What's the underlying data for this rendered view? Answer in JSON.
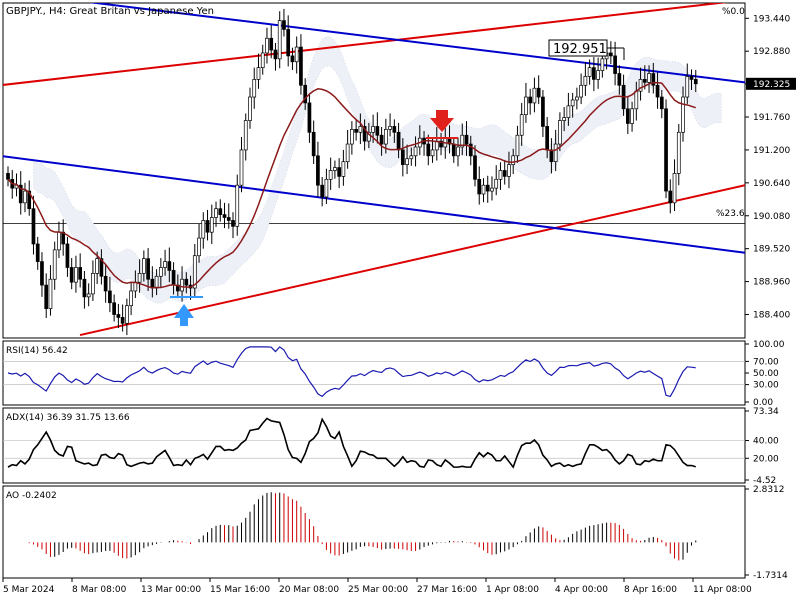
{
  "colors": {
    "up": "#000000",
    "down": "#000000",
    "background": "#ffffff",
    "grid": "#c0c0c0",
    "channel_blue": "#0000cc",
    "channel_red": "#dd0000",
    "ma": "#8b1a1a",
    "rsi": "#1a1ab0",
    "adx": "#000000",
    "ao_up": "#000000",
    "ao_down": "#cc0000",
    "arrow_down": "#e0201a",
    "arrow_up": "#3399ff",
    "last_price_bg": "#000000"
  },
  "chart_data": [
    {
      "type": "candlestick",
      "pane": "price",
      "title": "GBPJPY., H4:  Great Britan vs Japanese Yen",
      "corner_label": "%0.0",
      "level_label": "%23.6",
      "level_value": 189.95,
      "yticks": [
        193.44,
        192.88,
        192.325,
        191.76,
        191.2,
        190.64,
        190.08,
        189.52,
        188.96,
        188.4
      ],
      "ytick_labels": [
        "193.440",
        "192.880",
        "192.325",
        "191.760",
        "191.200",
        "190.640",
        "190.080",
        "189.520",
        "188.960",
        "188.400"
      ],
      "ylim": [
        188.0,
        193.7
      ],
      "last_price": 192.325,
      "last_price_label": "192.325",
      "callout_label": "192.951",
      "callout_value": 192.951,
      "x_labels": [
        "5 Mar 2024",
        "8 Mar 08:00",
        "13 Mar 00:00",
        "15 Mar 16:00",
        "20 Mar 08:00",
        "25 Mar 00:00",
        "27 Mar 16:00",
        "1 Apr 08:00",
        "4 Apr 00:00",
        "8 Apr 16:00",
        "11 Apr 08:00"
      ],
      "closes": [
        190.7,
        190.55,
        190.6,
        190.3,
        190.5,
        190.2,
        189.6,
        189.3,
        188.9,
        188.5,
        189.0,
        189.5,
        189.8,
        189.6,
        189.2,
        188.95,
        189.2,
        189.0,
        188.7,
        188.75,
        189.1,
        189.35,
        189.05,
        188.8,
        188.6,
        188.4,
        188.35,
        188.25,
        188.55,
        188.8,
        188.95,
        189.1,
        189.35,
        189.0,
        188.85,
        189.05,
        189.2,
        189.3,
        189.15,
        188.9,
        188.8,
        189.0,
        188.9,
        188.85,
        189.4,
        189.7,
        190.0,
        189.8,
        190.05,
        190.2,
        190.1,
        190.05,
        190.0,
        189.9,
        190.6,
        191.2,
        191.7,
        192.1,
        192.4,
        192.6,
        192.85,
        193.1,
        192.9,
        192.75,
        193.4,
        193.25,
        192.8,
        192.7,
        192.95,
        192.3,
        192.0,
        191.5,
        191.1,
        190.6,
        190.4,
        190.7,
        190.85,
        190.9,
        190.75,
        191.0,
        191.3,
        191.55,
        191.5,
        191.6,
        191.35,
        191.5,
        191.6,
        191.45,
        191.3,
        191.55,
        191.6,
        191.5,
        191.2,
        190.95,
        191.05,
        191.1,
        191.25,
        191.4,
        191.3,
        191.1,
        191.2,
        191.35,
        191.25,
        191.4,
        191.3,
        191.1,
        191.25,
        191.45,
        191.3,
        191.1,
        190.7,
        190.45,
        190.6,
        190.5,
        190.55,
        190.7,
        190.85,
        190.75,
        190.95,
        191.1,
        191.45,
        191.8,
        192.1,
        192.0,
        192.25,
        192.1,
        191.6,
        191.2,
        191.0,
        191.3,
        191.7,
        191.75,
        191.95,
        192.05,
        192.1,
        192.3,
        192.45,
        192.6,
        192.4,
        192.55,
        192.75,
        192.85,
        192.8,
        192.5,
        192.3,
        191.9,
        191.65,
        191.9,
        192.2,
        192.4,
        192.35,
        192.5,
        192.3,
        192.1,
        191.9,
        190.5,
        190.3,
        190.8,
        191.5,
        192.1,
        192.45,
        192.4,
        192.325
      ]
    },
    {
      "type": "line",
      "pane": "rsi",
      "label": "RSI(14) 56.42",
      "ylim": [
        0,
        100
      ],
      "yticks": [
        100,
        70,
        50,
        30,
        0
      ],
      "ytick_labels": [
        "100.00",
        "70.00",
        "50.00",
        "30.00",
        "0.00"
      ]
    },
    {
      "type": "line",
      "pane": "adx",
      "label": "ADX(14) 36.39 31.75 13.66",
      "ylim": [
        -4.52,
        73.34
      ],
      "yticks": [
        73.34,
        40,
        20,
        -4.52
      ],
      "ytick_labels": [
        "73.34",
        "40.00",
        "20.00",
        "-4.52"
      ]
    },
    {
      "type": "bar",
      "pane": "ao",
      "label": "AO -0.2402",
      "ylim": [
        -1.7314,
        2.8312
      ],
      "yticks": [
        2.8312,
        -1.7314
      ],
      "ytick_labels": [
        "2.8312",
        "-1.7314"
      ]
    }
  ]
}
